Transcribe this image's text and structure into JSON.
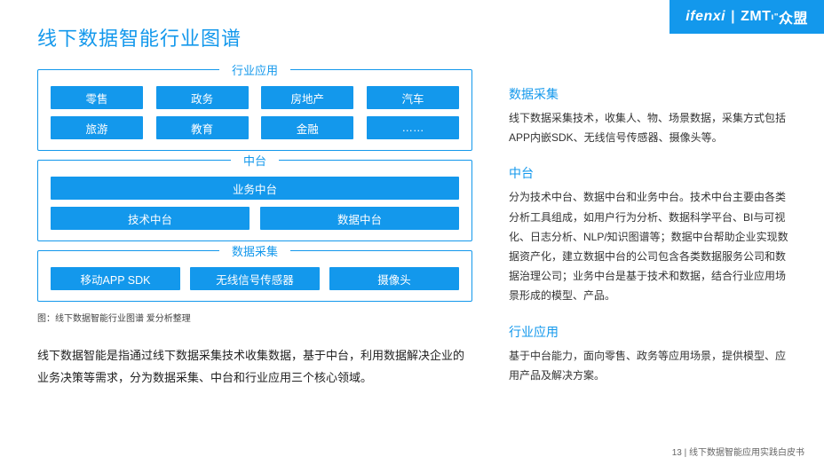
{
  "colors": {
    "brand": "#1398ec",
    "text": "#333333",
    "bg": "#ffffff"
  },
  "topbar": {
    "brand1": "ifenxi",
    "brand2": "ZMT",
    "brand2_sup": "ι\"",
    "brand3": "众盟"
  },
  "title": "线下数据智能行业图谱",
  "panels": [
    {
      "caption": "行业应用",
      "rows": [
        {
          "cls": "r4",
          "cells": [
            "零售",
            "政务",
            "房地产",
            "汽车"
          ]
        },
        {
          "cls": "r4",
          "cells": [
            "旅游",
            "教育",
            "金融",
            "……"
          ]
        }
      ]
    },
    {
      "caption": "中台",
      "rows": [
        {
          "cls": "r1",
          "cells": [
            "业务中台"
          ]
        },
        {
          "cls": "r2",
          "cells": [
            "技术中台",
            "数据中台"
          ]
        }
      ]
    },
    {
      "caption": "数据采集",
      "rows": [
        {
          "cls": "r3",
          "cells": [
            "移动APP SDK",
            "无线信号传感器",
            "摄像头"
          ]
        }
      ]
    }
  ],
  "footnote": "图：线下数据智能行业图谱  爱分析整理",
  "desc": "线下数据智能是指通过线下数据采集技术收集数据，基于中台，利用数据解决企业的业务决策等需求，分为数据采集、中台和行业应用三个核心领域。",
  "sections": [
    {
      "title": "数据采集",
      "body": "线下数据采集技术，收集人、物、场景数据，采集方式包括APP内嵌SDK、无线信号传感器、摄像头等。"
    },
    {
      "title": "中台",
      "body": "分为技术中台、数据中台和业务中台。技术中台主要由各类分析工具组成，如用户行为分析、数据科学平台、BI与可视化、日志分析、NLP/知识图谱等；数据中台帮助企业实现数据资产化，建立数据中台的公司包含各类数据服务公司和数据治理公司；业务中台是基于技术和数据，结合行业应用场景形成的模型、产品。"
    },
    {
      "title": "行业应用",
      "body": "基于中台能力，面向零售、政务等应用场景，提供模型、应用产品及解决方案。"
    }
  ],
  "pagenum": "13 | 线下数据智能应用实践白皮书"
}
